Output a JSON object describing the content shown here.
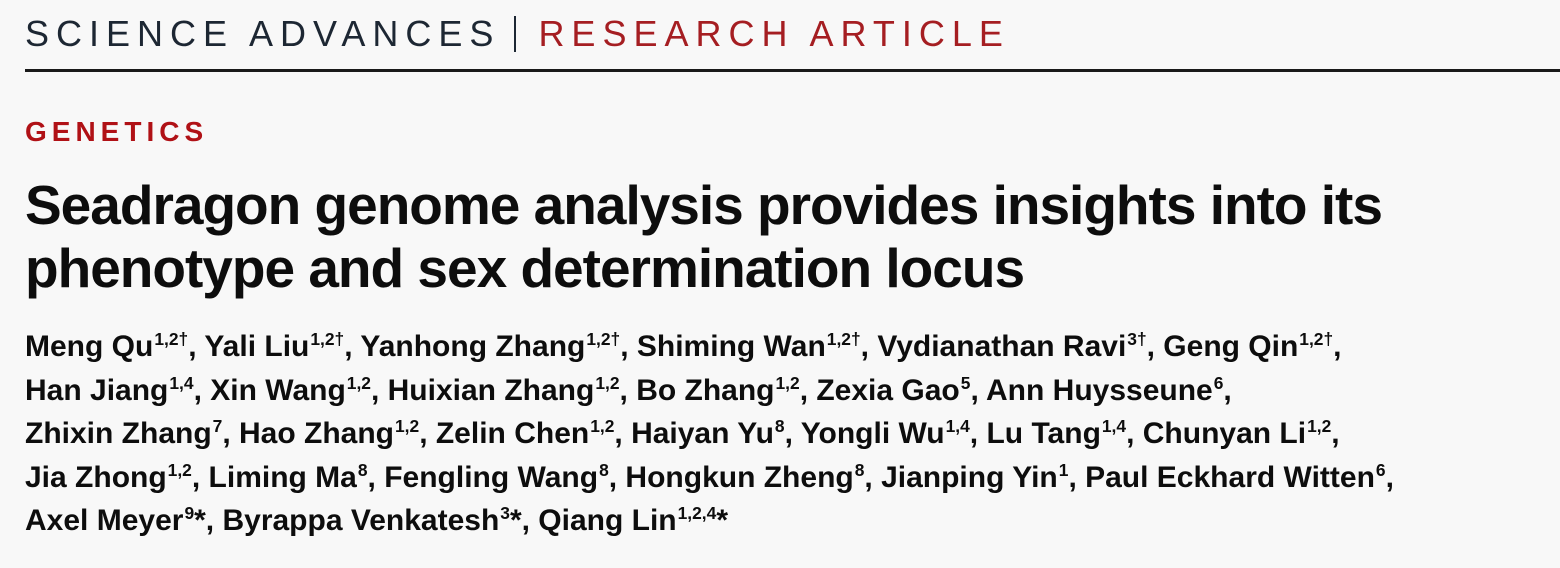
{
  "colors": {
    "background": "#f8f8f8",
    "journal_text": "#1d2733",
    "accent_red": "#a51e22",
    "section_red": "#b01116",
    "rule": "#1a1a1a",
    "text": "#0d0d0d"
  },
  "masthead": {
    "journal": "SCIENCE ADVANCES",
    "article_type": "RESEARCH ARTICLE"
  },
  "section_label": "GENETICS",
  "title": "Seadragon genome analysis provides insights into its phenotype and sex determination locus",
  "authors": {
    "separator": ", ",
    "line_end": ",",
    "star_symbol": "*",
    "lines": [
      [
        {
          "name": "Meng Qu",
          "sup": "1,2†"
        },
        {
          "name": "Yali Liu",
          "sup": "1,2†"
        },
        {
          "name": "Yanhong Zhang",
          "sup": "1,2†"
        },
        {
          "name": "Shiming Wan",
          "sup": "1,2†"
        },
        {
          "name": "Vydianathan Ravi",
          "sup": "3†"
        },
        {
          "name": "Geng Qin",
          "sup": "1,2†"
        }
      ],
      [
        {
          "name": "Han Jiang",
          "sup": "1,4"
        },
        {
          "name": "Xin Wang",
          "sup": "1,2"
        },
        {
          "name": "Huixian Zhang",
          "sup": "1,2"
        },
        {
          "name": "Bo Zhang",
          "sup": "1,2"
        },
        {
          "name": "Zexia Gao",
          "sup": "5"
        },
        {
          "name": "Ann Huysseune",
          "sup": "6"
        }
      ],
      [
        {
          "name": "Zhixin Zhang",
          "sup": "7"
        },
        {
          "name": "Hao Zhang",
          "sup": "1,2"
        },
        {
          "name": "Zelin Chen",
          "sup": "1,2"
        },
        {
          "name": "Haiyan Yu",
          "sup": "8"
        },
        {
          "name": "Yongli Wu",
          "sup": "1,4"
        },
        {
          "name": "Lu Tang",
          "sup": "1,4"
        },
        {
          "name": "Chunyan Li",
          "sup": "1,2"
        }
      ],
      [
        {
          "name": "Jia Zhong",
          "sup": "1,2"
        },
        {
          "name": "Liming Ma",
          "sup": "8"
        },
        {
          "name": "Fengling Wang",
          "sup": "8"
        },
        {
          "name": "Hongkun Zheng",
          "sup": "8"
        },
        {
          "name": "Jianping Yin",
          "sup": "1"
        },
        {
          "name": "Paul Eckhard Witten",
          "sup": "6"
        }
      ],
      [
        {
          "name": "Axel Meyer",
          "sup": "9",
          "star": true
        },
        {
          "name": "Byrappa Venkatesh",
          "sup": "3",
          "star": true
        },
        {
          "name": "Qiang Lin",
          "sup": "1,2,4",
          "star": true
        }
      ]
    ]
  }
}
